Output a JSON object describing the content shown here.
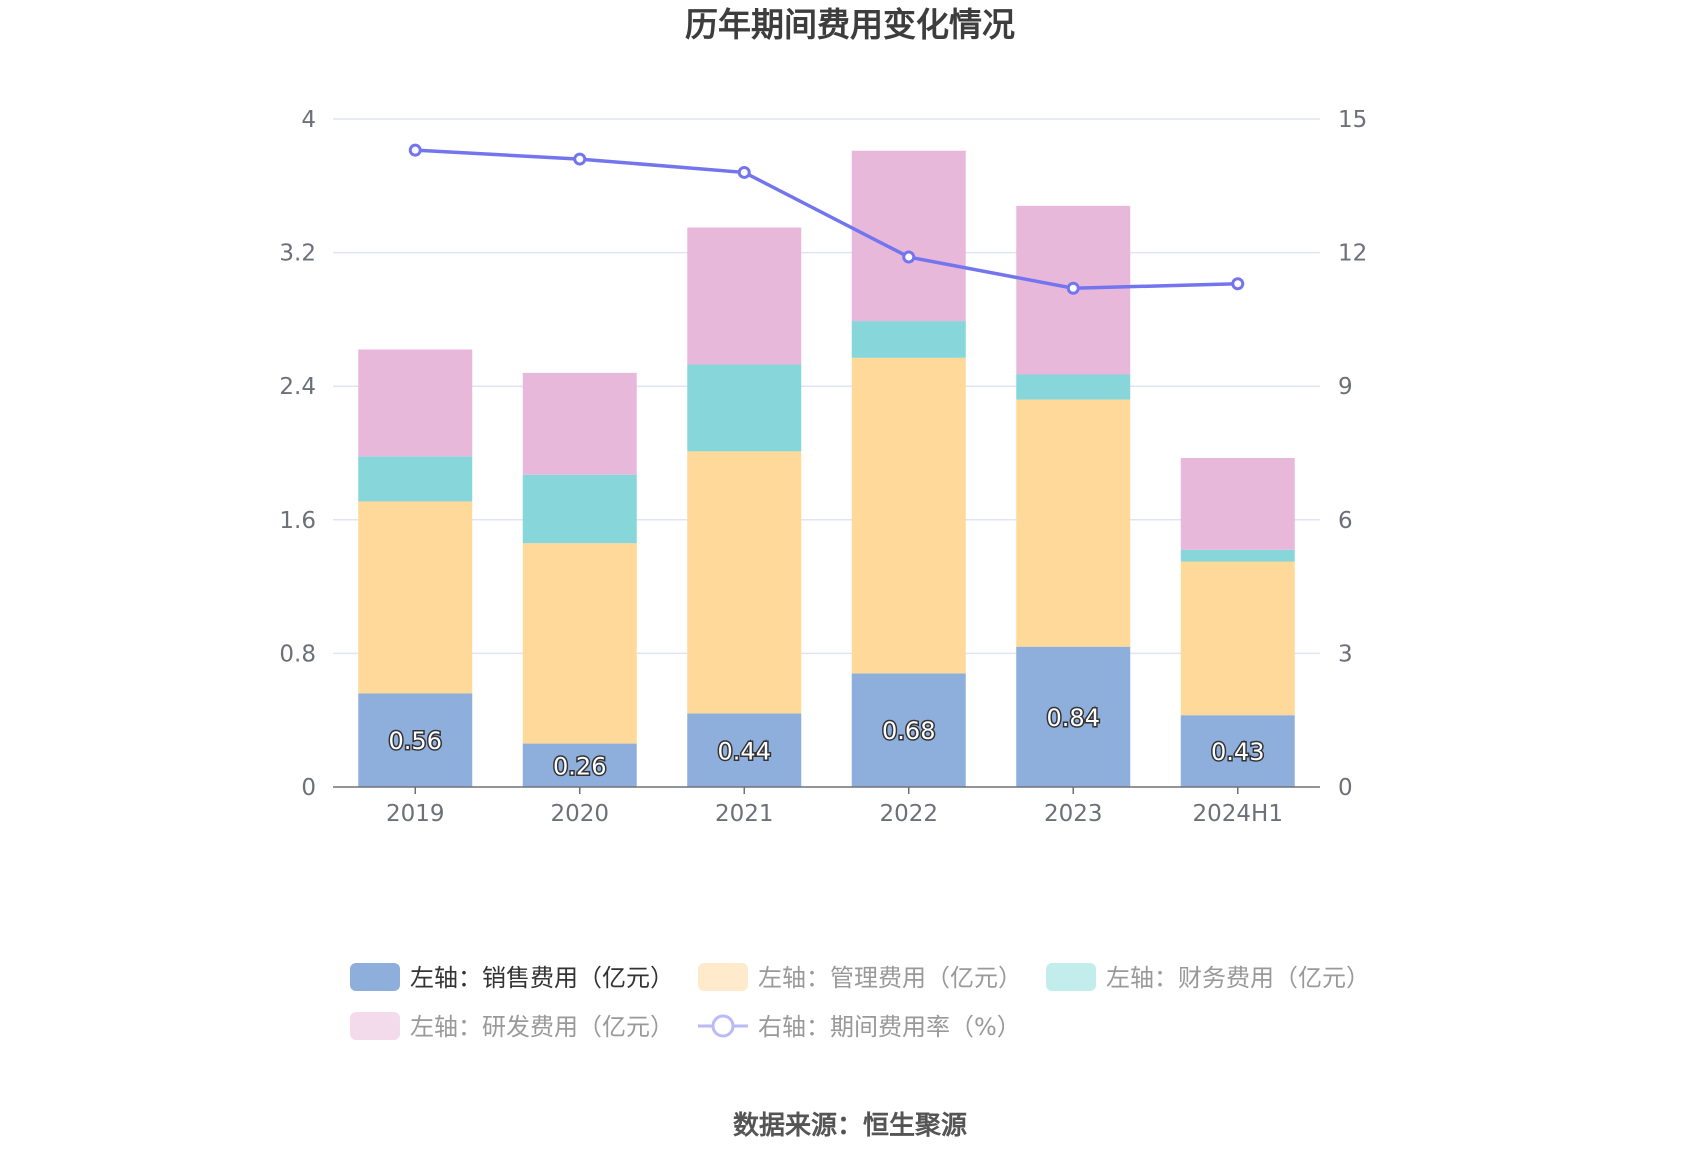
{
  "chart_data": {
    "type": "bar",
    "stacked": true,
    "title": "历年期间费用变化情况",
    "categories": [
      "2019",
      "2020",
      "2021",
      "2022",
      "2023",
      "2024H1"
    ],
    "series": [
      {
        "name": "左轴：销售费用（亿元）",
        "axis": "left",
        "kind": "bar",
        "color": "#8eaedb",
        "legend_color": "#8eaedb",
        "legend_text_color": "#333333",
        "values": [
          0.56,
          0.26,
          0.44,
          0.68,
          0.84,
          0.43
        ],
        "value_labels": [
          "0.56",
          "0.26",
          "0.44",
          "0.68",
          "0.84",
          "0.43"
        ]
      },
      {
        "name": "左轴：管理费用（亿元）",
        "axis": "left",
        "kind": "bar",
        "color": "#fed999",
        "legend_color": "#ffeacc",
        "legend_text_color": "#999999",
        "values": [
          1.15,
          1.2,
          1.57,
          1.89,
          1.48,
          0.92
        ]
      },
      {
        "name": "左轴：财务费用（亿元）",
        "axis": "left",
        "kind": "bar",
        "color": "#87d6da",
        "legend_color": "#c3eced",
        "legend_text_color": "#999999",
        "values": [
          0.27,
          0.41,
          0.52,
          0.22,
          0.15,
          0.07
        ]
      },
      {
        "name": "左轴：研发费用（亿元）",
        "axis": "left",
        "kind": "bar",
        "color": "#e8b8da",
        "legend_color": "#f3dbec",
        "legend_text_color": "#999999",
        "values": [
          0.64,
          0.61,
          0.82,
          1.02,
          1.01,
          0.55
        ]
      },
      {
        "name": "右轴：期间费用率（%）",
        "axis": "right",
        "kind": "line",
        "color": "#7275ee",
        "legend_color": "#b9baf6",
        "legend_text_color": "#999999",
        "values": [
          14.3,
          14.1,
          13.8,
          11.9,
          11.2,
          11.3
        ]
      }
    ],
    "left_axis": {
      "min": 0,
      "max": 4,
      "ticks": [
        "0",
        "0.8",
        "1.6",
        "2.4",
        "3.2",
        "4"
      ]
    },
    "right_axis": {
      "min": 0,
      "max": 15,
      "ticks": [
        "0",
        "3",
        "6",
        "9",
        "12",
        "15"
      ]
    },
    "grid": true,
    "legend_position": "bottom"
  },
  "source": "数据来源：恒生聚源"
}
